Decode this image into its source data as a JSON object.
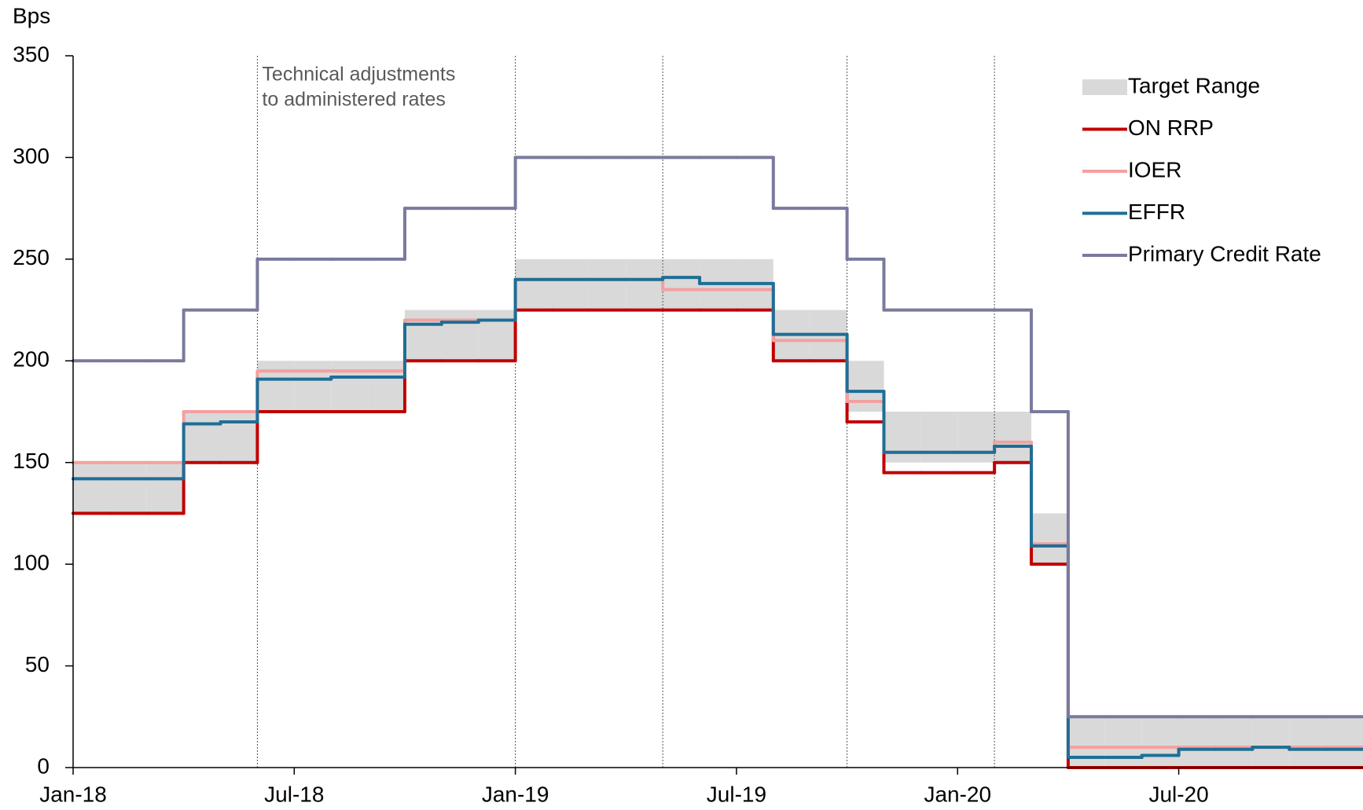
{
  "chart_data": {
    "type": "step",
    "y_axis_label": "Bps",
    "annotation": [
      "Technical adjustments",
      "to administered rates"
    ],
    "annotation_dates": [
      "2018-06",
      "2019-01",
      "2019-05",
      "2019-10",
      "2020-02"
    ],
    "x": [
      "2018-01",
      "2018-02",
      "2018-03",
      "2018-04",
      "2018-05",
      "2018-06",
      "2018-07",
      "2018-08",
      "2018-09",
      "2018-10",
      "2018-11",
      "2018-12",
      "2019-01",
      "2019-02",
      "2019-03",
      "2019-04",
      "2019-05",
      "2019-06",
      "2019-07",
      "2019-08",
      "2019-09",
      "2019-10",
      "2019-11",
      "2019-12",
      "2020-01",
      "2020-02",
      "2020-03",
      "2020-04",
      "2020-05",
      "2020-06",
      "2020-07",
      "2020-08",
      "2020-09",
      "2020-10",
      "2020-11"
    ],
    "xlim": [
      "2018-01",
      "2020-12"
    ],
    "xticks": [
      {
        "value": "2018-01",
        "label": "Jan-18"
      },
      {
        "value": "2018-07",
        "label": "Jul-18"
      },
      {
        "value": "2019-01",
        "label": "Jan-19"
      },
      {
        "value": "2019-07",
        "label": "Jul-19"
      },
      {
        "value": "2020-01",
        "label": "Jan-20"
      },
      {
        "value": "2020-07",
        "label": "Jul-20"
      }
    ],
    "ylim": [
      0,
      350
    ],
    "yticks": [
      0,
      50,
      100,
      150,
      200,
      250,
      300,
      350
    ],
    "legend": "top-right",
    "range": {
      "name": "Target Range",
      "color": "#d9d9d9",
      "upper": [
        150,
        150,
        150,
        175,
        175,
        200,
        200,
        200,
        200,
        225,
        225,
        225,
        250,
        250,
        250,
        250,
        250,
        250,
        250,
        225,
        225,
        200,
        175,
        175,
        175,
        175,
        125,
        25,
        25,
        25,
        25,
        25,
        25,
        25,
        25
      ],
      "lower": [
        125,
        125,
        125,
        150,
        150,
        175,
        175,
        175,
        175,
        200,
        200,
        200,
        225,
        225,
        225,
        225,
        225,
        225,
        225,
        200,
        200,
        175,
        150,
        150,
        150,
        150,
        100,
        0,
        0,
        0,
        0,
        0,
        0,
        0,
        0
      ]
    },
    "series": [
      {
        "name": "ON RRP",
        "color": "#c00000",
        "values": [
          125,
          125,
          125,
          150,
          150,
          175,
          175,
          175,
          175,
          200,
          200,
          200,
          225,
          225,
          225,
          225,
          225,
          225,
          225,
          200,
          200,
          170,
          145,
          145,
          145,
          150,
          100,
          0,
          0,
          0,
          0,
          0,
          0,
          0,
          0
        ]
      },
      {
        "name": "IOER",
        "color": "#f4a0a0",
        "values": [
          150,
          150,
          150,
          175,
          175,
          195,
          195,
          195,
          195,
          220,
          220,
          220,
          240,
          240,
          240,
          240,
          235,
          235,
          235,
          210,
          210,
          180,
          155,
          155,
          155,
          160,
          110,
          10,
          10,
          10,
          10,
          10,
          10,
          10,
          10
        ]
      },
      {
        "name": "EFFR",
        "color": "#1f6e96",
        "values": [
          142,
          142,
          142,
          169,
          170,
          191,
          191,
          192,
          192,
          218,
          219,
          220,
          240,
          240,
          240,
          240,
          241,
          238,
          238,
          213,
          213,
          185,
          155,
          155,
          155,
          158,
          109,
          5,
          5,
          6,
          9,
          9,
          10,
          9,
          9
        ]
      },
      {
        "name": "Primary Credit Rate",
        "color": "#7a7a9e",
        "values": [
          200,
          200,
          200,
          225,
          225,
          250,
          250,
          250,
          250,
          275,
          275,
          275,
          300,
          300,
          300,
          300,
          300,
          300,
          300,
          275,
          275,
          250,
          225,
          225,
          225,
          225,
          175,
          25,
          25,
          25,
          25,
          25,
          25,
          25,
          25
        ]
      }
    ]
  }
}
